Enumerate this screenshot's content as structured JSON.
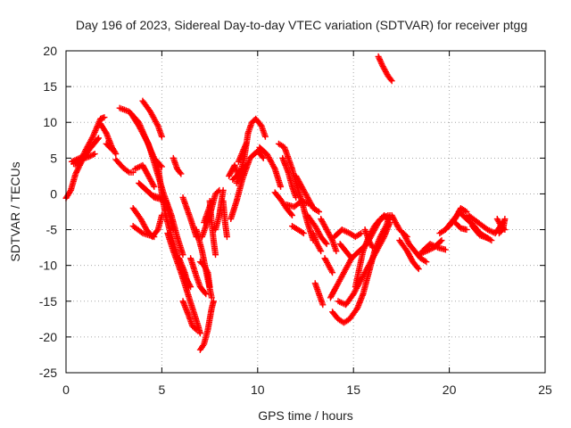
{
  "chart_data": {
    "type": "scatter",
    "title": "Day 196 of 2023, Sidereal Day-to-day VTEC variation (SDTVAR) for receiver ptgg",
    "xlabel": "GPS time / hours",
    "ylabel": "SDTVAR / TECUs",
    "xlim": [
      0,
      25
    ],
    "ylim": [
      -25,
      20
    ],
    "xticks": [
      "0",
      "5",
      "10",
      "15",
      "20",
      "25"
    ],
    "yticks": [
      "-25",
      "-20",
      "-15",
      "-10",
      "-5",
      "0",
      "5",
      "10",
      "15",
      "20"
    ],
    "grid": true,
    "marker": "+",
    "series_color": "#ff0000",
    "tracks": [
      [
        [
          0.0,
          -0.6
        ],
        [
          0.25,
          0.5
        ],
        [
          0.5,
          2.8
        ],
        [
          0.9,
          5.0
        ],
        [
          1.3,
          6.5
        ],
        [
          1.7,
          7.8
        ]
      ],
      [
        [
          0.4,
          4.2
        ],
        [
          0.8,
          4.8
        ],
        [
          1.2,
          5.2
        ],
        [
          1.5,
          5.6
        ]
      ],
      [
        [
          0.6,
          3.8
        ],
        [
          1.0,
          6.0
        ],
        [
          1.4,
          8.0
        ],
        [
          1.8,
          10.5
        ],
        [
          2.0,
          10.7
        ]
      ],
      [
        [
          0.3,
          4.5
        ],
        [
          0.7,
          5.0
        ],
        [
          1.1,
          5.4
        ]
      ],
      [
        [
          1.8,
          9.8
        ],
        [
          2.1,
          8.5
        ],
        [
          2.4,
          6.5
        ],
        [
          2.6,
          5.6
        ]
      ],
      [
        [
          2.1,
          7.0
        ],
        [
          2.4,
          6.2
        ]
      ],
      [
        [
          2.6,
          4.8
        ],
        [
          3.0,
          3.6
        ],
        [
          3.3,
          3.0
        ],
        [
          3.5,
          3.0
        ]
      ],
      [
        [
          2.8,
          12.0
        ],
        [
          3.3,
          11.5
        ],
        [
          3.8,
          10.0
        ],
        [
          4.2,
          7.5
        ],
        [
          4.6,
          5.0
        ],
        [
          5.0,
          3.8
        ]
      ],
      [
        [
          3.4,
          11.2
        ],
        [
          3.8,
          9.5
        ],
        [
          4.3,
          7.0
        ],
        [
          4.7,
          3.5
        ],
        [
          5.1,
          0.0
        ],
        [
          5.5,
          -3.0
        ],
        [
          5.8,
          -6.0
        ],
        [
          6.1,
          -8.5
        ]
      ],
      [
        [
          3.6,
          3.5
        ],
        [
          4.0,
          4.0
        ],
        [
          4.3,
          2.5
        ],
        [
          4.6,
          1.0
        ]
      ],
      [
        [
          3.8,
          1.5
        ],
        [
          4.2,
          0.5
        ],
        [
          4.6,
          -0.5
        ],
        [
          5.0,
          -0.8
        ]
      ],
      [
        [
          3.5,
          -2.0
        ],
        [
          3.9,
          -3.5
        ],
        [
          4.2,
          -5.0
        ],
        [
          4.5,
          -6.0
        ],
        [
          4.8,
          -5.0
        ],
        [
          5.0,
          -3.0
        ]
      ],
      [
        [
          4.0,
          1.0
        ],
        [
          4.5,
          -0.2
        ],
        [
          5.0,
          -0.6
        ]
      ],
      [
        [
          4.0,
          13.0
        ],
        [
          4.4,
          11.5
        ],
        [
          4.8,
          9.5
        ],
        [
          5.0,
          8.0
        ]
      ],
      [
        [
          3.5,
          -4.5
        ],
        [
          4.0,
          -5.5
        ],
        [
          4.6,
          -6.0
        ]
      ],
      [
        [
          4.8,
          4.0
        ],
        [
          4.9,
          2.0
        ],
        [
          5.0,
          0.0
        ],
        [
          5.2,
          -3.0
        ],
        [
          5.5,
          -6.0
        ],
        [
          5.9,
          -9.5
        ],
        [
          6.2,
          -11.5
        ],
        [
          6.5,
          -13.0
        ]
      ],
      [
        [
          5.2,
          -1.0
        ],
        [
          5.4,
          -3.0
        ],
        [
          5.6,
          -5.0
        ]
      ],
      [
        [
          5.3,
          -5.5
        ],
        [
          5.6,
          -8.0
        ],
        [
          6.0,
          -11.0
        ],
        [
          6.3,
          -13.5
        ],
        [
          6.6,
          -16.0
        ],
        [
          6.9,
          -18.5
        ],
        [
          7.0,
          -19.5
        ]
      ],
      [
        [
          5.9,
          -9.0
        ],
        [
          6.2,
          -11.0
        ],
        [
          6.4,
          -13.0
        ]
      ],
      [
        [
          6.1,
          -15.0
        ],
        [
          6.4,
          -17.0
        ],
        [
          6.6,
          -18.5
        ],
        [
          6.8,
          -19.0
        ]
      ],
      [
        [
          5.6,
          5.0
        ],
        [
          5.8,
          3.5
        ],
        [
          6.0,
          2.8
        ]
      ],
      [
        [
          6.1,
          -0.5
        ],
        [
          6.5,
          -3.5
        ],
        [
          6.8,
          -6.0
        ]
      ],
      [
        [
          6.5,
          -9.0
        ],
        [
          6.8,
          -11.5
        ],
        [
          7.0,
          -13.0
        ],
        [
          7.3,
          -14.0
        ]
      ],
      [
        [
          6.8,
          -5.0
        ],
        [
          7.1,
          -8.0
        ],
        [
          7.4,
          -12.0
        ],
        [
          7.6,
          -14.5
        ]
      ],
      [
        [
          7.0,
          -9.5
        ],
        [
          7.2,
          -10.0
        ],
        [
          7.4,
          -11.0
        ],
        [
          7.5,
          -13.0
        ]
      ],
      [
        [
          7.1,
          -6.0
        ],
        [
          7.5,
          -3.0
        ],
        [
          7.8,
          0.0
        ],
        [
          8.0,
          0.5
        ]
      ],
      [
        [
          7.2,
          -4.0
        ],
        [
          7.4,
          -2.5
        ],
        [
          7.6,
          -1.0
        ]
      ],
      [
        [
          7.5,
          -1.0
        ],
        [
          7.6,
          -4.0
        ],
        [
          7.7,
          -6.5
        ],
        [
          7.8,
          -8.5
        ]
      ],
      [
        [
          7.0,
          -21.8
        ],
        [
          7.2,
          -21.0
        ],
        [
          7.4,
          -19.0
        ],
        [
          7.6,
          -16.0
        ],
        [
          7.7,
          -15.0
        ]
      ],
      [
        [
          7.8,
          -5.0
        ],
        [
          8.0,
          -3.0
        ],
        [
          8.2,
          0.5
        ]
      ],
      [
        [
          8.2,
          -1.0
        ],
        [
          8.3,
          -4.0
        ],
        [
          8.4,
          -6.0
        ]
      ],
      [
        [
          8.6,
          -3.5
        ],
        [
          8.9,
          -1.0
        ],
        [
          9.2,
          2.0
        ],
        [
          9.6,
          5.0
        ],
        [
          10.0,
          6.0
        ],
        [
          10.3,
          5.0
        ]
      ],
      [
        [
          8.5,
          2.5
        ],
        [
          8.8,
          4.0
        ],
        [
          9.0,
          2.5
        ],
        [
          9.2,
          3.5
        ]
      ],
      [
        [
          8.9,
          1.5
        ],
        [
          9.1,
          3.0
        ],
        [
          9.3,
          5.0
        ],
        [
          9.5,
          8.5
        ],
        [
          9.7,
          10.0
        ],
        [
          9.9,
          10.5
        ],
        [
          10.2,
          9.5
        ],
        [
          10.4,
          8.0
        ]
      ],
      [
        [
          8.7,
          2.0
        ],
        [
          9.0,
          2.8
        ],
        [
          9.4,
          4.0
        ]
      ],
      [
        [
          9.0,
          4.5
        ],
        [
          9.2,
          5.8
        ],
        [
          9.4,
          7.0
        ]
      ],
      [
        [
          10.1,
          6.5
        ],
        [
          10.5,
          5.5
        ],
        [
          10.9,
          3.5
        ],
        [
          11.2,
          1.0
        ]
      ],
      [
        [
          10.9,
          0.2
        ],
        [
          11.2,
          -0.8
        ],
        [
          11.5,
          -2.0
        ],
        [
          11.8,
          -3.0
        ]
      ],
      [
        [
          11.1,
          7.0
        ],
        [
          11.4,
          6.5
        ],
        [
          11.6,
          5.0
        ],
        [
          11.8,
          3.5
        ],
        [
          12.0,
          1.5
        ],
        [
          12.3,
          -1.0
        ],
        [
          12.6,
          -4.0
        ],
        [
          12.9,
          -6.5
        ]
      ],
      [
        [
          11.3,
          5.0
        ],
        [
          11.6,
          3.0
        ],
        [
          11.8,
          1.0
        ],
        [
          12.0,
          -0.5
        ]
      ],
      [
        [
          11.5,
          -1.5
        ],
        [
          11.9,
          -1.8
        ],
        [
          12.3,
          -1.0
        ],
        [
          12.8,
          -1.5
        ]
      ],
      [
        [
          12.0,
          2.5
        ],
        [
          12.3,
          1.0
        ],
        [
          12.6,
          -0.5
        ],
        [
          12.9,
          -2.0
        ],
        [
          13.2,
          -2.5
        ]
      ],
      [
        [
          12.6,
          -3.0
        ],
        [
          13.0,
          -4.5
        ],
        [
          13.3,
          -6.0
        ],
        [
          13.6,
          -7.0
        ]
      ],
      [
        [
          12.9,
          -5.5
        ],
        [
          13.1,
          -7.0
        ],
        [
          13.3,
          -8.0
        ]
      ],
      [
        [
          13.0,
          -12.5
        ],
        [
          13.2,
          -14.0
        ],
        [
          13.4,
          -15.5
        ]
      ],
      [
        [
          13.3,
          -3.5
        ],
        [
          13.6,
          -5.0
        ],
        [
          13.9,
          -6.5
        ],
        [
          14.1,
          -8.0
        ]
      ],
      [
        [
          13.5,
          -9.0
        ],
        [
          13.7,
          -10.0
        ],
        [
          13.9,
          -11.0
        ]
      ],
      [
        [
          14.0,
          -6.0
        ],
        [
          14.4,
          -5.0
        ],
        [
          14.8,
          -5.5
        ],
        [
          15.1,
          -6.0
        ],
        [
          15.4,
          -5.5
        ]
      ],
      [
        [
          13.8,
          -14.5
        ],
        [
          14.1,
          -13.0
        ],
        [
          14.5,
          -11.0
        ],
        [
          14.9,
          -9.0
        ],
        [
          15.3,
          -8.0
        ],
        [
          15.7,
          -7.0
        ],
        [
          16.0,
          -5.5
        ],
        [
          16.3,
          -4.0
        ],
        [
          16.6,
          -3.0
        ],
        [
          16.8,
          -3.5
        ]
      ],
      [
        [
          13.9,
          -16.5
        ],
        [
          14.2,
          -17.5
        ],
        [
          14.5,
          -18.0
        ],
        [
          14.8,
          -17.5
        ],
        [
          15.2,
          -16.0
        ],
        [
          15.5,
          -14.0
        ],
        [
          15.8,
          -11.0
        ],
        [
          16.1,
          -8.0
        ],
        [
          16.4,
          -6.0
        ],
        [
          16.7,
          -4.5
        ],
        [
          16.9,
          -3.0
        ]
      ],
      [
        [
          14.2,
          -15.0
        ],
        [
          14.6,
          -15.5
        ],
        [
          15.0,
          -14.0
        ],
        [
          15.4,
          -12.0
        ],
        [
          15.8,
          -10.0
        ],
        [
          16.2,
          -8.0
        ],
        [
          16.6,
          -6.0
        ],
        [
          16.9,
          -4.0
        ]
      ],
      [
        [
          15.1,
          -13.0
        ],
        [
          15.3,
          -10.5
        ],
        [
          15.5,
          -8.0
        ],
        [
          15.8,
          -6.0
        ],
        [
          16.1,
          -4.5
        ],
        [
          16.4,
          -3.5
        ],
        [
          16.8,
          -3.0
        ]
      ],
      [
        [
          15.6,
          -5.0
        ],
        [
          15.8,
          -6.5
        ],
        [
          16.0,
          -7.5
        ]
      ],
      [
        [
          16.3,
          19.2
        ],
        [
          16.5,
          18.0
        ],
        [
          16.8,
          16.5
        ],
        [
          17.0,
          15.8
        ]
      ],
      [
        [
          17.0,
          -3.0
        ],
        [
          17.2,
          -4.0
        ],
        [
          17.4,
          -5.0
        ],
        [
          17.6,
          -5.5
        ],
        [
          17.8,
          -6.0
        ]
      ],
      [
        [
          17.4,
          -6.5
        ],
        [
          17.8,
          -8.0
        ],
        [
          18.1,
          -9.5
        ],
        [
          18.4,
          -10.5
        ]
      ],
      [
        [
          17.6,
          -5.5
        ],
        [
          17.9,
          -7.0
        ],
        [
          18.2,
          -8.0
        ],
        [
          18.5,
          -9.0
        ],
        [
          18.8,
          -9.5
        ]
      ],
      [
        [
          18.4,
          -8.5
        ],
        [
          18.8,
          -8.0
        ],
        [
          19.2,
          -7.5
        ],
        [
          19.6,
          -6.5
        ]
      ],
      [
        [
          18.6,
          -8.0
        ],
        [
          19.0,
          -7.0
        ],
        [
          19.4,
          -7.5
        ],
        [
          19.8,
          -7.8
        ]
      ],
      [
        [
          19.5,
          -5.5
        ],
        [
          19.8,
          -5.0
        ],
        [
          20.1,
          -4.0
        ],
        [
          20.4,
          -3.0
        ],
        [
          20.6,
          -2.2
        ]
      ],
      [
        [
          20.0,
          -4.5
        ],
        [
          20.3,
          -3.5
        ],
        [
          20.6,
          -2.0
        ],
        [
          20.9,
          -2.5
        ]
      ],
      [
        [
          20.3,
          -4.0
        ],
        [
          20.6,
          -4.8
        ],
        [
          20.9,
          -5.0
        ]
      ],
      [
        [
          20.5,
          -2.5
        ],
        [
          20.9,
          -3.5
        ],
        [
          21.3,
          -4.5
        ],
        [
          21.6,
          -5.5
        ],
        [
          21.9,
          -6.0
        ],
        [
          22.2,
          -6.5
        ]
      ],
      [
        [
          21.0,
          -3.0
        ],
        [
          21.5,
          -4.0
        ],
        [
          22.0,
          -5.0
        ],
        [
          22.4,
          -5.5
        ],
        [
          22.8,
          -4.0
        ]
      ],
      [
        [
          21.2,
          -4.5
        ],
        [
          21.6,
          -5.8
        ],
        [
          22.0,
          -6.2
        ]
      ],
      [
        [
          22.5,
          -3.5
        ],
        [
          22.7,
          -4.5
        ],
        [
          22.9,
          -5.0
        ]
      ],
      [
        [
          22.6,
          -5.5
        ],
        [
          22.8,
          -5.0
        ],
        [
          22.9,
          -3.5
        ]
      ],
      [
        [
          11.8,
          -4.5
        ],
        [
          12.1,
          -5.0
        ],
        [
          12.4,
          -5.5
        ]
      ],
      [
        [
          14.3,
          -7.0
        ],
        [
          14.6,
          -8.0
        ],
        [
          14.9,
          -9.0
        ]
      ]
    ]
  }
}
